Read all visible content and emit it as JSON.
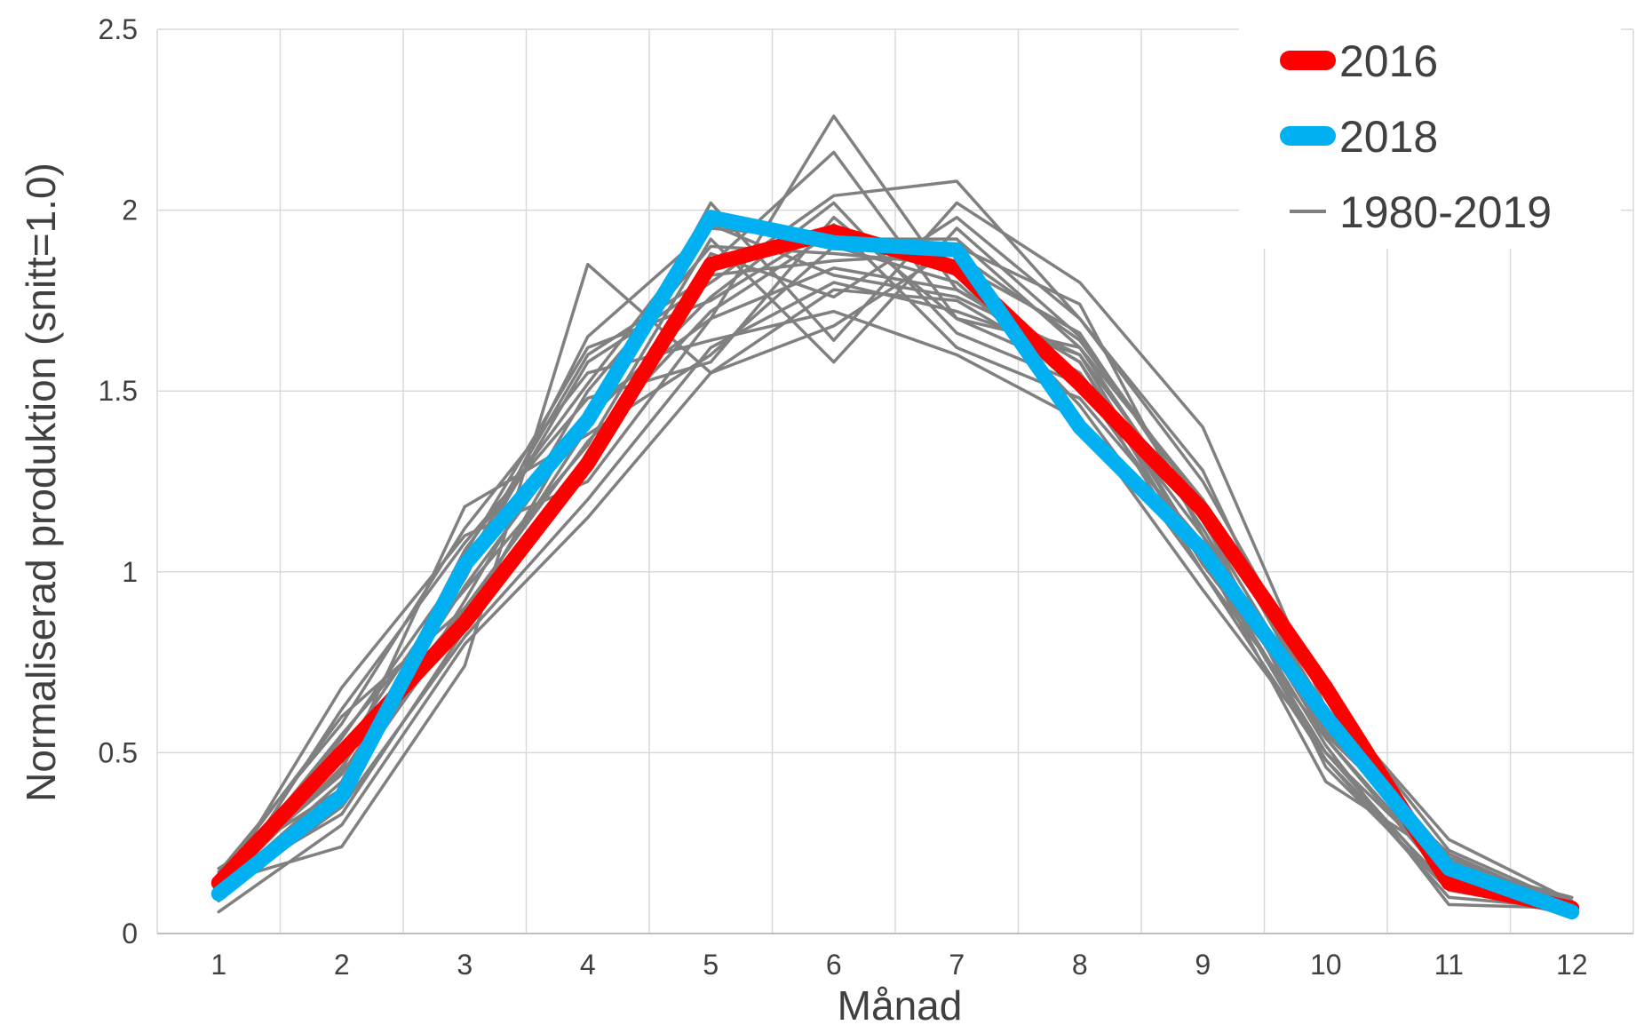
{
  "chart_data": {
    "type": "line",
    "title": "",
    "xlabel": "Månad",
    "ylabel": "Normaliserad produktion (snitt=1.0)",
    "x": [
      1,
      2,
      3,
      4,
      5,
      6,
      7,
      8,
      9,
      10,
      11,
      12
    ],
    "x_tick_labels": [
      "1",
      "2",
      "3",
      "4",
      "5",
      "6",
      "7",
      "8",
      "9",
      "10",
      "11",
      "12"
    ],
    "ylim": [
      0,
      2.5
    ],
    "y_ticks": [
      0,
      0.5,
      1,
      1.5,
      2,
      2.5
    ],
    "y_tick_labels": [
      "0",
      "0.5",
      "1",
      "1.5",
      "2",
      "2.5"
    ],
    "grid": true,
    "legend_position": "top-right",
    "legend": [
      {
        "label": "2016",
        "color": "#ff0000",
        "style": "thick"
      },
      {
        "label": "2018",
        "color": "#00b0f0",
        "style": "thick"
      },
      {
        "label": "1980-2019",
        "color": "#808080",
        "style": "thin"
      }
    ],
    "highlight_series": [
      {
        "name": "2016",
        "color": "#ff0000",
        "values": [
          0.14,
          0.5,
          0.86,
          1.3,
          1.85,
          1.94,
          1.84,
          1.52,
          1.17,
          0.68,
          0.14,
          0.07
        ]
      },
      {
        "name": "2018",
        "color": "#00b0f0",
        "values": [
          0.11,
          0.38,
          1.02,
          1.42,
          1.98,
          1.91,
          1.89,
          1.4,
          1.06,
          0.6,
          0.18,
          0.06
        ]
      }
    ],
    "background_series_label": "1980-2019",
    "background_color": "#808080",
    "background_series": [
      [
        0.06,
        0.3,
        0.8,
        1.15,
        1.55,
        1.78,
        1.75,
        1.55,
        1.0,
        0.48,
        0.1,
        0.07
      ],
      [
        0.1,
        0.35,
        0.82,
        1.2,
        1.62,
        1.8,
        1.72,
        1.6,
        1.05,
        0.5,
        0.12,
        0.06
      ],
      [
        0.14,
        0.24,
        0.74,
        1.85,
        1.55,
        1.68,
        1.9,
        1.74,
        1.1,
        0.54,
        0.14,
        0.08
      ],
      [
        0.16,
        0.45,
        1.18,
        1.38,
        1.6,
        1.9,
        1.8,
        1.5,
        1.2,
        0.58,
        0.18,
        0.09
      ],
      [
        0.12,
        0.68,
        1.1,
        1.25,
        1.7,
        2.26,
        1.78,
        1.58,
        1.05,
        0.42,
        0.2,
        0.06
      ],
      [
        0.15,
        0.6,
        0.9,
        1.3,
        1.85,
        2.16,
        1.7,
        1.62,
        1.12,
        0.55,
        0.22,
        0.07
      ],
      [
        0.13,
        0.55,
        0.95,
        1.35,
        1.92,
        1.58,
        1.95,
        1.65,
        1.18,
        0.6,
        0.16,
        0.05
      ],
      [
        0.18,
        0.4,
        0.88,
        1.4,
        2.02,
        1.64,
        2.02,
        1.8,
        1.4,
        0.62,
        0.15,
        0.08
      ],
      [
        0.11,
        0.5,
        1.0,
        1.58,
        1.8,
        2.04,
        2.08,
        1.7,
        1.25,
        0.65,
        0.26,
        0.09
      ],
      [
        0.12,
        0.42,
        1.05,
        1.62,
        1.75,
        1.96,
        1.62,
        1.48,
        1.08,
        0.52,
        0.08,
        0.07
      ],
      [
        0.09,
        0.38,
        0.92,
        1.5,
        1.9,
        1.88,
        1.85,
        1.66,
        1.15,
        0.46,
        0.12,
        0.06
      ],
      [
        0.14,
        0.52,
        0.86,
        1.45,
        1.7,
        1.84,
        1.78,
        1.58,
        1.02,
        0.58,
        0.19,
        0.1
      ],
      [
        0.17,
        0.58,
        1.12,
        1.55,
        1.64,
        1.72,
        1.6,
        1.42,
        0.95,
        0.5,
        0.17,
        0.07
      ],
      [
        0.12,
        0.46,
        0.98,
        1.65,
        1.95,
        1.92,
        1.92,
        1.62,
        1.2,
        0.66,
        0.23,
        0.08
      ],
      [
        0.1,
        0.62,
        1.08,
        1.48,
        1.58,
        1.98,
        1.7,
        1.55,
        1.1,
        0.6,
        0.15,
        0.06
      ],
      [
        0.13,
        0.33,
        0.84,
        1.28,
        1.88,
        1.76,
        1.98,
        1.7,
        1.28,
        0.56,
        0.2,
        0.09
      ],
      [
        0.15,
        0.44,
        0.96,
        1.42,
        1.76,
        2.02,
        1.66,
        1.52,
        1.05,
        0.48,
        0.13,
        0.05
      ],
      [
        0.11,
        0.54,
        1.02,
        1.6,
        1.82,
        1.86,
        1.88,
        1.64,
        1.18,
        0.62,
        0.21,
        0.08
      ],
      [
        0.14,
        0.48,
        0.9,
        1.36,
        1.72,
        1.94,
        1.82,
        1.46,
        1.0,
        0.54,
        0.16,
        0.07
      ],
      [
        0.12,
        0.4,
        1.06,
        1.52,
        1.96,
        1.82,
        1.76,
        1.6,
        1.14,
        0.58,
        0.18,
        0.06
      ]
    ]
  }
}
